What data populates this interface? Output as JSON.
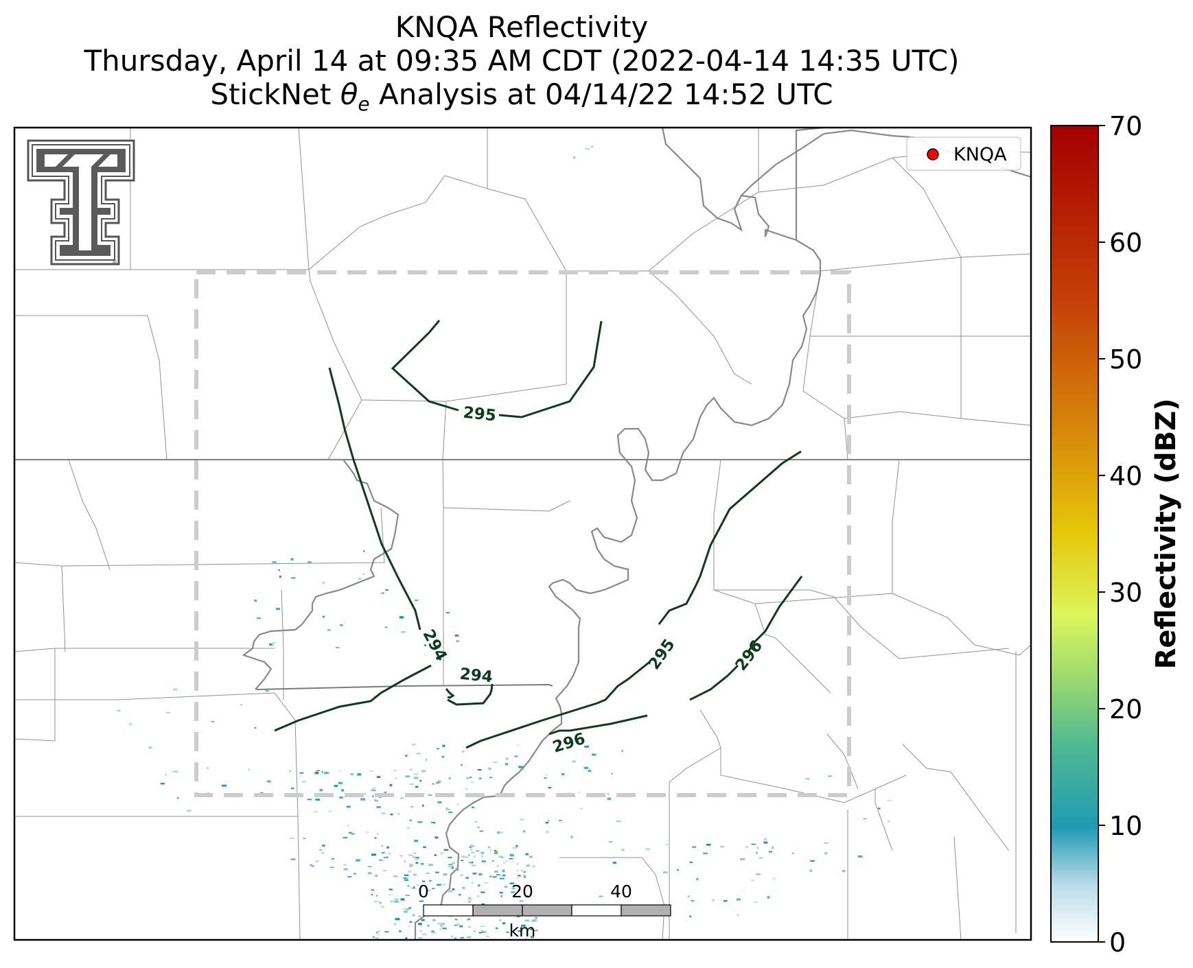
{
  "title": {
    "line1": "KNQA Reflectivity",
    "line2": "Thursday, April 14 at 09:35 AM CDT (2022-04-14 14:35 UTC)",
    "line3_prefix": "StickNet ",
    "line3_theta": "θ",
    "line3_sub": "e",
    "line3_suffix": " Analysis at 04/14/22 14:52 UTC"
  },
  "legend": {
    "label": "KNQA",
    "marker_color": "#ff0000"
  },
  "logo": {
    "name": "texas-tech-double-t-logo"
  },
  "colorbar": {
    "label": "Reflectivity (dBZ)",
    "min": 0,
    "max": 70,
    "ticks": [
      "0",
      "10",
      "20",
      "30",
      "40",
      "50",
      "60",
      "70"
    ],
    "colors": [
      "#ffffff",
      "#d7ecf5",
      "#1f9bb3",
      "#4fb892",
      "#c9f060",
      "#f7f04a",
      "#e3b80a",
      "#d6720a",
      "#c33a07",
      "#a90000"
    ]
  },
  "chart_data": {
    "type": "contour",
    "field": "equivalent potential temperature",
    "contour_levels": [
      "294",
      "295",
      "296"
    ],
    "contour_color": "#0b3d1c",
    "analysis_box": {
      "style": "dashed",
      "color": "#cccccc"
    }
  },
  "scalebar": {
    "ticks": [
      "0",
      "20",
      "40"
    ],
    "unit": "km",
    "segments_km": [
      0,
      10,
      20,
      30,
      40
    ]
  }
}
